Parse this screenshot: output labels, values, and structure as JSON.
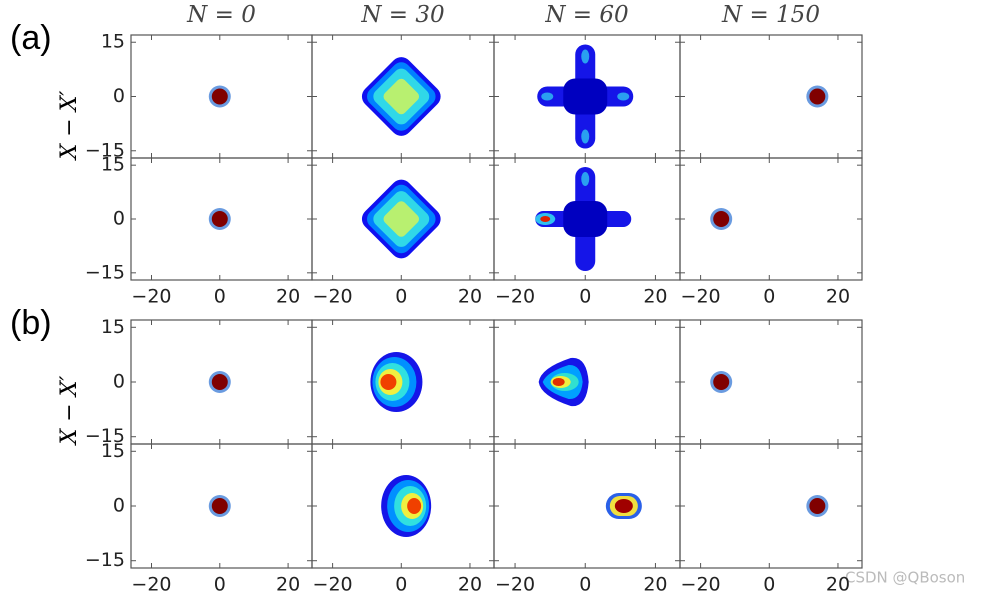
{
  "labels": [
    "(a)",
    "(b)"
  ],
  "column_titles": [
    "N = 0",
    "N = 30",
    "N = 60",
    "N = 150"
  ],
  "y_label": "X − X′",
  "xlim": [
    -26,
    27
  ],
  "ylim": [
    -17,
    17
  ],
  "xticks": [
    {
      "value": -20,
      "label": "−20"
    },
    0,
    20
  ],
  "yticks": [
    15,
    0,
    {
      "value": -15,
      "label": "−15"
    }
  ],
  "panels": [
    [
      {
        "x": 0,
        "y": 0
      },
      {
        "x": 0,
        "y": 0
      },
      {
        "x": 0,
        "y": 0
      },
      {
        "x": 14,
        "y": 0
      }
    ],
    [
      {
        "x": 0,
        "y": 0
      },
      {
        "x": 0,
        "y": 0
      },
      {
        "x": 0,
        "y": 0
      },
      {
        "x": -14,
        "y": 0
      }
    ],
    [
      {
        "x": 0,
        "y": 0
      },
      {
        "x": -2,
        "y": 0
      },
      {
        "x": -7,
        "y": 0
      },
      {
        "x": -14,
        "y": 0
      }
    ],
    [
      {
        "x": 0,
        "y": 0
      },
      {
        "x": 2,
        "y": 0
      },
      {
        "x": 11,
        "y": 0
      },
      {
        "x": 14,
        "y": 0
      }
    ]
  ],
  "watermark": "CSDN @QBoson"
}
